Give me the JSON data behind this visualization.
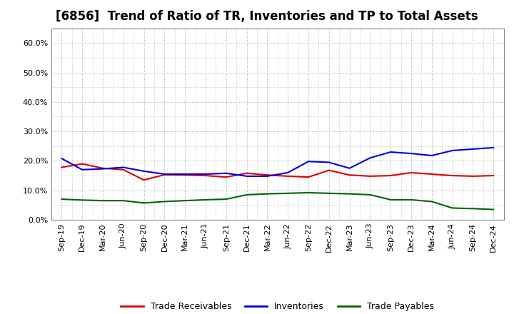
{
  "title": "[6856]  Trend of Ratio of TR, Inventories and TP to Total Assets",
  "labels": [
    "Sep-19",
    "Dec-19",
    "Mar-20",
    "Jun-20",
    "Sep-20",
    "Dec-20",
    "Mar-21",
    "Jun-21",
    "Sep-21",
    "Dec-21",
    "Mar-22",
    "Jun-22",
    "Sep-22",
    "Dec-22",
    "Mar-23",
    "Jun-23",
    "Sep-23",
    "Dec-23",
    "Mar-24",
    "Jun-24",
    "Sep-24",
    "Dec-24"
  ],
  "trade_receivables": [
    0.178,
    0.19,
    0.175,
    0.17,
    0.135,
    0.153,
    0.152,
    0.15,
    0.145,
    0.158,
    0.152,
    0.148,
    0.145,
    0.168,
    0.152,
    0.148,
    0.15,
    0.16,
    0.155,
    0.15,
    0.148,
    0.15
  ],
  "inventories": [
    0.208,
    0.17,
    0.173,
    0.178,
    0.165,
    0.155,
    0.155,
    0.155,
    0.158,
    0.148,
    0.148,
    0.16,
    0.198,
    0.195,
    0.175,
    0.21,
    0.23,
    0.225,
    0.218,
    0.235,
    0.24,
    0.245
  ],
  "trade_payables": [
    0.07,
    0.067,
    0.065,
    0.065,
    0.057,
    0.062,
    0.065,
    0.068,
    0.07,
    0.085,
    0.088,
    0.09,
    0.092,
    0.09,
    0.088,
    0.085,
    0.068,
    0.068,
    0.062,
    0.04,
    0.038,
    0.035
  ],
  "ylim": [
    0.0,
    0.65
  ],
  "yticks": [
    0.0,
    0.1,
    0.2,
    0.3,
    0.4,
    0.5,
    0.6
  ],
  "line_colors": {
    "trade_receivables": "#dd0000",
    "inventories": "#0000dd",
    "trade_payables": "#006600"
  },
  "bg_color": "#ffffff",
  "plot_bg_color": "#ffffff",
  "grid_color": "#999999",
  "title_fontsize": 12,
  "tick_fontsize": 8,
  "legend_labels": [
    "Trade Receivables",
    "Inventories",
    "Trade Payables"
  ]
}
